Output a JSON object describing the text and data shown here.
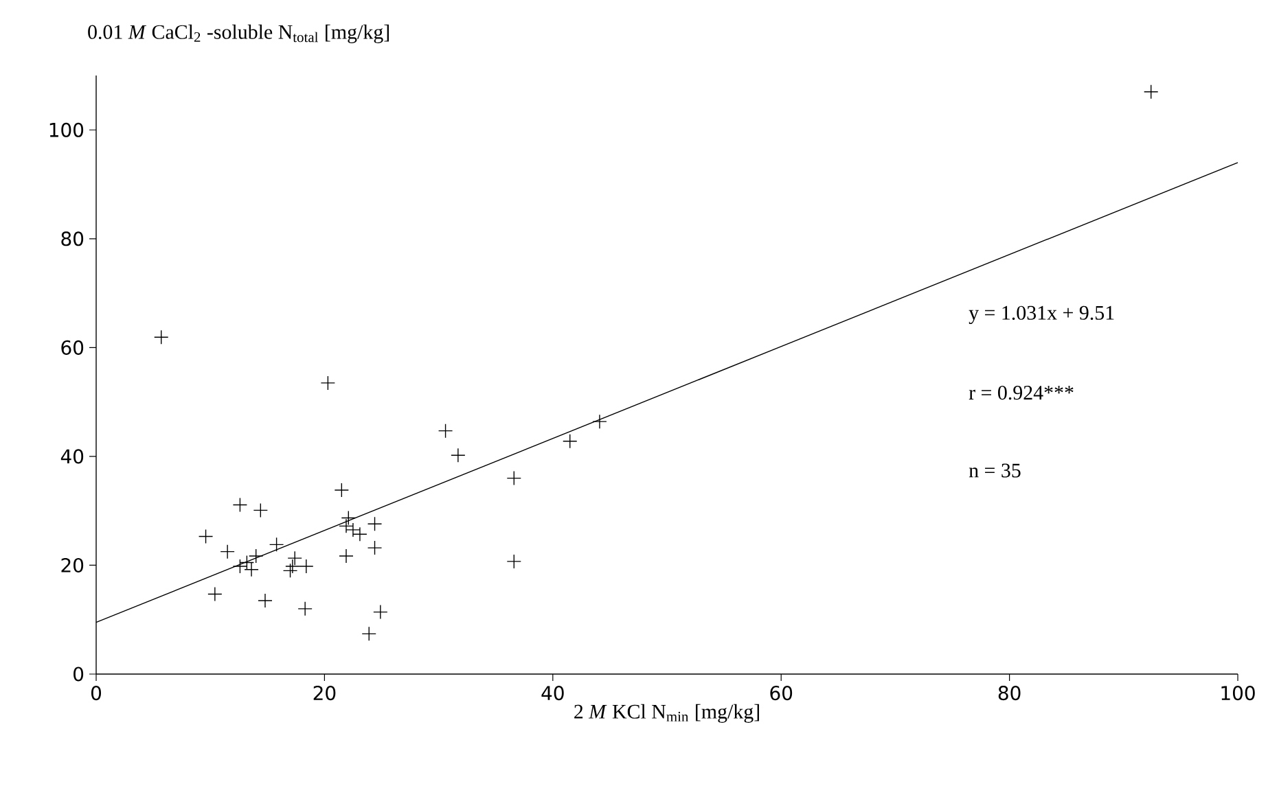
{
  "chart_data": {
    "type": "scatter",
    "ylabel": "0.01 *M* CaCl$_{2}$ -soluble N$_{total}$ [mg/kg]",
    "xlabel": "2 *M* KCl N$_{min}$  [mg/kg]",
    "xlim": [
      0,
      100
    ],
    "ylim": [
      0,
      110
    ],
    "xticks": [
      0,
      20,
      40,
      60,
      80,
      100
    ],
    "yticks": [
      0,
      20,
      40,
      60,
      80,
      100
    ],
    "marker": "cross",
    "grid": false,
    "series": [
      {
        "color": "#000000",
        "x": [
          5.7,
          20.3,
          30.6,
          31.7,
          44.1,
          41.5,
          36.6,
          36.6,
          21.5,
          12.6,
          14.4,
          9.6,
          11.5,
          15.8,
          12.6,
          13.6,
          14.0,
          17.2,
          17.4,
          18.4,
          10.4,
          14.8,
          18.3,
          24.9,
          23.9,
          21.9,
          21.9,
          22.1,
          23.1,
          24.4,
          24.4,
          92.4,
          13.2,
          17.0,
          22.5
        ],
        "values": [
          61.9,
          53.5,
          44.7,
          40.2,
          46.4,
          42.8,
          36.0,
          20.7,
          33.8,
          31.1,
          30.1,
          25.3,
          22.5,
          23.8,
          19.8,
          19.2,
          21.7,
          19.8,
          21.3,
          19.8,
          14.7,
          13.5,
          12.0,
          11.4,
          7.4,
          21.7,
          27.2,
          28.7,
          25.7,
          27.6,
          23.2,
          107.0,
          20.5,
          19.0,
          26.5
        ]
      },
      {
        "type": "line",
        "marker": "none",
        "line_style": "solid",
        "color": "#000000",
        "x": [
          0,
          100
        ],
        "values": [
          9.5,
          94
        ]
      }
    ],
    "annotations": [
      "y = 1.031x + 9.51",
      "r = 0.924***",
      "n = 35"
    ]
  }
}
